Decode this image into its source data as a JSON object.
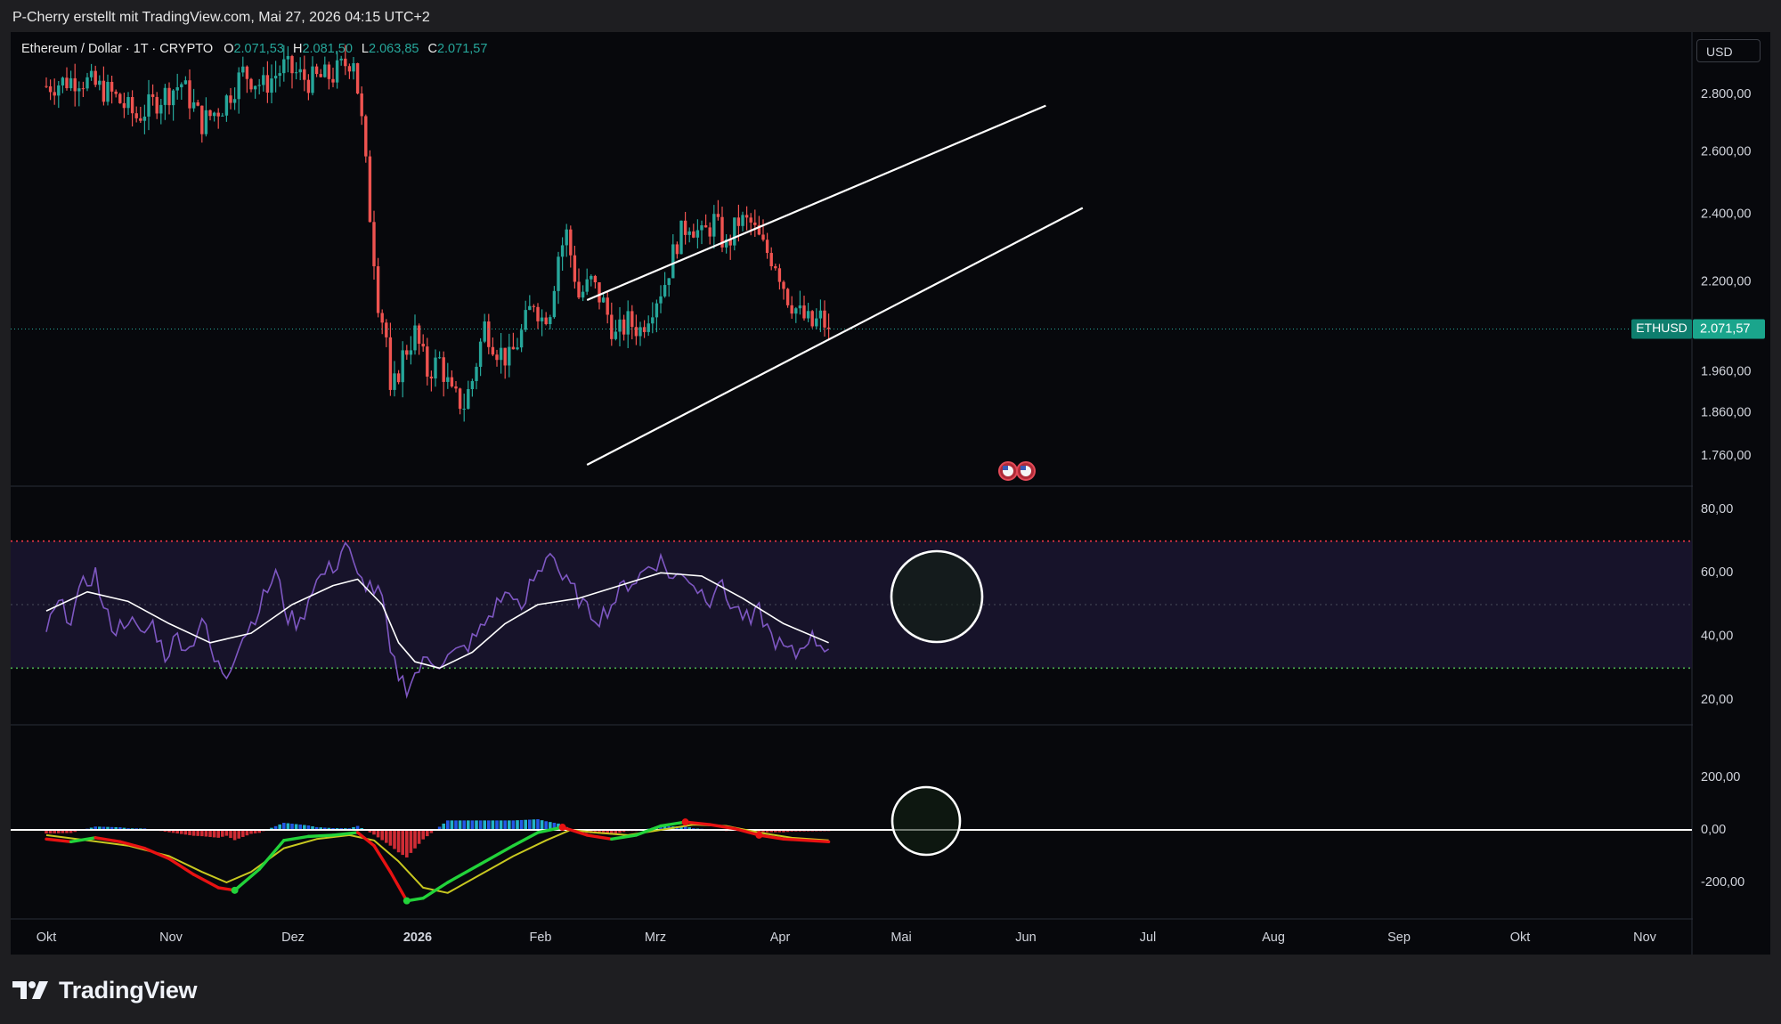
{
  "header": {
    "credit": "P-Cherry erstellt mit TradingView.com, Mai 27, 2026 04:15 UTC+2",
    "symbol_title": "Ethereum / Dollar · 1T · CRYPTO",
    "ohlc": {
      "o_label": "O",
      "o_value": "2.071,53",
      "h_label": "H",
      "h_value": "2.081,50",
      "l_label": "L",
      "l_value": "2.063,85",
      "c_label": "C",
      "c_value": "2.071,57"
    },
    "currency": "USD"
  },
  "price_axis": {
    "labels": [
      "2.800,00",
      "2.600,00",
      "2.400,00",
      "2.200,00",
      "1.960,00",
      "1.860,00",
      "1.760,00"
    ],
    "ticker_tag": "ETHUSD",
    "last_price_label": "2.071,57"
  },
  "rsi_axis": {
    "labels": [
      "80,00",
      "60,00",
      "40,00",
      "20,00"
    ]
  },
  "macd_axis": {
    "labels": [
      "200,00",
      "0,00",
      "-200,00"
    ]
  },
  "time_axis": {
    "labels": [
      "Okt",
      "Nov",
      "Dez",
      "2026",
      "Feb",
      "Mrz",
      "Apr",
      "Mai",
      "Jun",
      "Jul",
      "Aug",
      "Sep",
      "Okt",
      "Nov"
    ]
  },
  "colors": {
    "up": "#26a69a",
    "down": "#ef5350",
    "rsi": "#7e57c2",
    "rsi_ma": "#ffffff",
    "overbought": "#f23645",
    "oversold": "#4caf50",
    "macd_up": "#22d33a",
    "macd_down": "#e81212",
    "signal": "#c8c820",
    "hist_pos_a": "#26c6da",
    "hist_pos_b": "#2962ff",
    "hist_neg": "#e5313a"
  },
  "chart_data": {
    "type": "line",
    "price": {
      "series_description": "ETHUSD daily close, 1T",
      "last_close": 2071.57,
      "scale": "log",
      "visible_low": 1740,
      "visible_high": 2950,
      "start": "2025-09-24",
      "closes": [
        [
          0,
          2830
        ],
        [
          8,
          2860
        ],
        [
          16,
          2800
        ],
        [
          22,
          2720
        ],
        [
          28,
          2790
        ],
        [
          33,
          2840
        ],
        [
          38,
          2700
        ],
        [
          43,
          2760
        ],
        [
          48,
          2880
        ],
        [
          53,
          2830
        ],
        [
          58,
          2900
        ],
        [
          64,
          2850
        ],
        [
          70,
          2870
        ],
        [
          75,
          2940
        ],
        [
          77,
          2700
        ],
        [
          79,
          2400
        ],
        [
          81,
          2150
        ],
        [
          83,
          2050
        ],
        [
          84,
          1890
        ],
        [
          87,
          2000
        ],
        [
          90,
          2060
        ],
        [
          93,
          1960
        ],
        [
          96,
          1990
        ],
        [
          99,
          1900
        ],
        [
          102,
          1880
        ],
        [
          104,
          1940
        ],
        [
          107,
          2080
        ],
        [
          110,
          2020
        ],
        [
          113,
          1990
        ],
        [
          116,
          2060
        ],
        [
          119,
          2150
        ],
        [
          121,
          2100
        ],
        [
          123,
          2130
        ],
        [
          125,
          2280
        ],
        [
          127,
          2340
        ],
        [
          130,
          2160
        ],
        [
          133,
          2200
        ],
        [
          136,
          2140
        ],
        [
          139,
          2050
        ],
        [
          142,
          2090
        ],
        [
          145,
          2070
        ],
        [
          148,
          2140
        ],
        [
          151,
          2200
        ],
        [
          154,
          2320
        ],
        [
          157,
          2380
        ],
        [
          160,
          2330
        ],
        [
          163,
          2380
        ],
        [
          166,
          2300
        ],
        [
          169,
          2380
        ],
        [
          172,
          2370
        ],
        [
          175,
          2300
        ],
        [
          178,
          2260
        ],
        [
          181,
          2160
        ],
        [
          184,
          2110
        ],
        [
          187,
          2080
        ],
        [
          189,
          2100
        ],
        [
          191,
          2072
        ]
      ],
      "trend_lines": [
        {
          "name": "channel-upper",
          "from": [
            "2026-02-03",
            2150
          ],
          "to": [
            "2026-05-26",
            2760
          ]
        },
        {
          "name": "channel-lower",
          "from": [
            "2026-02-03",
            1740
          ],
          "to": [
            "2026-06-04",
            2420
          ]
        }
      ]
    },
    "rsi": {
      "overbought": 70,
      "mid": 50,
      "oversold": 30,
      "ylim": [
        13,
        87
      ],
      "values": [
        [
          0,
          42
        ],
        [
          3,
          50
        ],
        [
          6,
          46
        ],
        [
          9,
          56
        ],
        [
          12,
          60
        ],
        [
          14,
          48
        ],
        [
          17,
          42
        ],
        [
          20,
          46
        ],
        [
          23,
          40
        ],
        [
          26,
          44
        ],
        [
          29,
          34
        ],
        [
          32,
          40
        ],
        [
          35,
          36
        ],
        [
          38,
          46
        ],
        [
          41,
          32
        ],
        [
          44,
          28
        ],
        [
          47,
          38
        ],
        [
          50,
          44
        ],
        [
          53,
          52
        ],
        [
          56,
          60
        ],
        [
          59,
          46
        ],
        [
          62,
          44
        ],
        [
          65,
          56
        ],
        [
          68,
          60
        ],
        [
          71,
          63
        ],
        [
          73,
          70
        ],
        [
          76,
          58
        ],
        [
          79,
          56
        ],
        [
          82,
          52
        ],
        [
          84,
          34
        ],
        [
          86,
          28
        ],
        [
          88,
          24
        ],
        [
          90,
          28
        ],
        [
          93,
          33
        ],
        [
          96,
          32
        ],
        [
          99,
          34
        ],
        [
          102,
          36
        ],
        [
          105,
          40
        ],
        [
          108,
          46
        ],
        [
          111,
          52
        ],
        [
          114,
          54
        ],
        [
          116,
          46
        ],
        [
          118,
          56
        ],
        [
          121,
          62
        ],
        [
          123,
          68
        ],
        [
          126,
          58
        ],
        [
          129,
          54
        ],
        [
          132,
          48
        ],
        [
          135,
          46
        ],
        [
          138,
          50
        ],
        [
          141,
          56
        ],
        [
          144,
          58
        ],
        [
          147,
          62
        ],
        [
          150,
          64
        ],
        [
          153,
          58
        ],
        [
          156,
          60
        ],
        [
          159,
          55
        ],
        [
          162,
          52
        ],
        [
          164,
          58
        ],
        [
          166,
          52
        ],
        [
          169,
          48
        ],
        [
          172,
          44
        ],
        [
          174,
          48
        ],
        [
          177,
          40
        ],
        [
          180,
          36
        ],
        [
          183,
          34
        ],
        [
          186,
          40
        ],
        [
          189,
          38
        ],
        [
          191,
          36
        ]
      ],
      "ma_values": [
        [
          0,
          48
        ],
        [
          10,
          54
        ],
        [
          20,
          51
        ],
        [
          30,
          44
        ],
        [
          40,
          38
        ],
        [
          50,
          41
        ],
        [
          60,
          50
        ],
        [
          70,
          56
        ],
        [
          76,
          58
        ],
        [
          82,
          50
        ],
        [
          86,
          38
        ],
        [
          90,
          32
        ],
        [
          96,
          30
        ],
        [
          104,
          35
        ],
        [
          112,
          44
        ],
        [
          120,
          50
        ],
        [
          130,
          52
        ],
        [
          140,
          56
        ],
        [
          150,
          60
        ],
        [
          160,
          59
        ],
        [
          170,
          52
        ],
        [
          180,
          44
        ],
        [
          191,
          38
        ]
      ]
    },
    "macd": {
      "ylim": [
        -270,
        250
      ],
      "macd": [
        [
          0,
          -35
        ],
        [
          6,
          -45
        ],
        [
          12,
          -30
        ],
        [
          18,
          -45
        ],
        [
          24,
          -70
        ],
        [
          30,
          -110
        ],
        [
          36,
          -170
        ],
        [
          42,
          -220
        ],
        [
          46,
          -230
        ],
        [
          52,
          -150
        ],
        [
          58,
          -40
        ],
        [
          64,
          -25
        ],
        [
          70,
          -20
        ],
        [
          76,
          -10
        ],
        [
          80,
          -60
        ],
        [
          84,
          -160
        ],
        [
          88,
          -270
        ],
        [
          92,
          -260
        ],
        [
          98,
          -200
        ],
        [
          106,
          -130
        ],
        [
          114,
          -60
        ],
        [
          120,
          -10
        ],
        [
          126,
          10
        ],
        [
          132,
          -20
        ],
        [
          138,
          -35
        ],
        [
          144,
          -20
        ],
        [
          150,
          15
        ],
        [
          156,
          30
        ],
        [
          162,
          20
        ],
        [
          168,
          5
        ],
        [
          174,
          -20
        ],
        [
          180,
          -35
        ],
        [
          191,
          -45
        ]
      ],
      "signal": [
        [
          0,
          -20
        ],
        [
          10,
          -40
        ],
        [
          20,
          -60
        ],
        [
          30,
          -100
        ],
        [
          38,
          -160
        ],
        [
          44,
          -200
        ],
        [
          50,
          -160
        ],
        [
          58,
          -70
        ],
        [
          66,
          -35
        ],
        [
          74,
          -20
        ],
        [
          80,
          -40
        ],
        [
          86,
          -120
        ],
        [
          92,
          -220
        ],
        [
          98,
          -240
        ],
        [
          106,
          -170
        ],
        [
          114,
          -100
        ],
        [
          122,
          -40
        ],
        [
          128,
          0
        ],
        [
          134,
          -10
        ],
        [
          142,
          -20
        ],
        [
          150,
          0
        ],
        [
          158,
          20
        ],
        [
          166,
          15
        ],
        [
          174,
          -10
        ],
        [
          182,
          -30
        ],
        [
          191,
          -40
        ]
      ],
      "histogram_note": "histogram = macd - signal, drawn as bars"
    }
  }
}
